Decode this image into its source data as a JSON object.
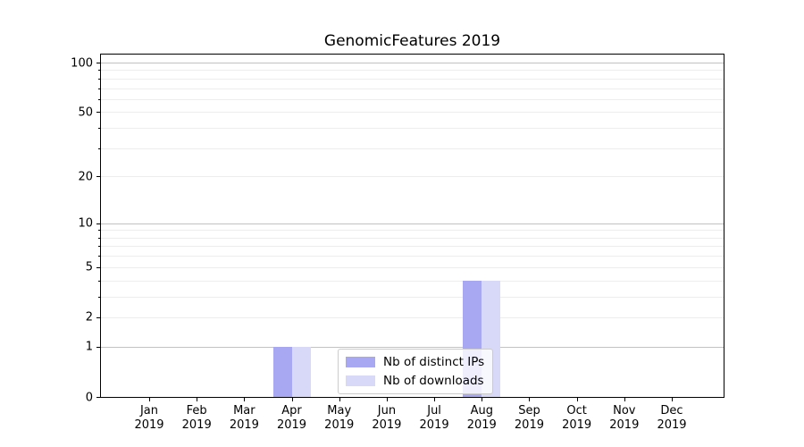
{
  "title": "GenomicFeatures 2019",
  "legend": {
    "items": [
      {
        "label": "Nb of distinct IPs",
        "color": "#a8a8f2"
      },
      {
        "label": "Nb of downloads",
        "color": "#d8d8f8"
      }
    ]
  },
  "chart_data": {
    "type": "bar",
    "title": "GenomicFeatures 2019",
    "categories": [
      "Jan 2019",
      "Feb 2019",
      "Mar 2019",
      "Apr 2019",
      "May 2019",
      "Jun 2019",
      "Jul 2019",
      "Aug 2019",
      "Sep 2019",
      "Oct 2019",
      "Nov 2019",
      "Dec 2019"
    ],
    "series": [
      {
        "name": "Nb of distinct IPs",
        "color": "#a8a8f2",
        "values": [
          0,
          0,
          0,
          1,
          0,
          0,
          0,
          4,
          0,
          0,
          0,
          0
        ]
      },
      {
        "name": "Nb of downloads",
        "color": "#d8d8f8",
        "values": [
          0,
          0,
          0,
          1,
          0,
          0,
          0,
          4,
          0,
          0,
          0,
          0
        ]
      }
    ],
    "xlabel": "",
    "ylabel": "",
    "yscale": "log1p",
    "ylim": [
      0,
      112
    ],
    "ytick_values": [
      100,
      50,
      20,
      10,
      5,
      2,
      1,
      0
    ],
    "ytick_labels": [
      "100",
      "50",
      "20",
      "10",
      "5",
      "2",
      "1",
      "0"
    ],
    "major_gridlines": [
      1,
      10,
      100
    ],
    "minor_gridlines": [
      2,
      3,
      4,
      5,
      6,
      7,
      8,
      9,
      20,
      30,
      40,
      50,
      60,
      70,
      80,
      90
    ],
    "grid": true,
    "legend_position": "lower-center"
  },
  "colors": {
    "major_grid": "#c2c2c2",
    "minor_grid": "#ededed",
    "axis": "#000000",
    "background": "#ffffff"
  }
}
